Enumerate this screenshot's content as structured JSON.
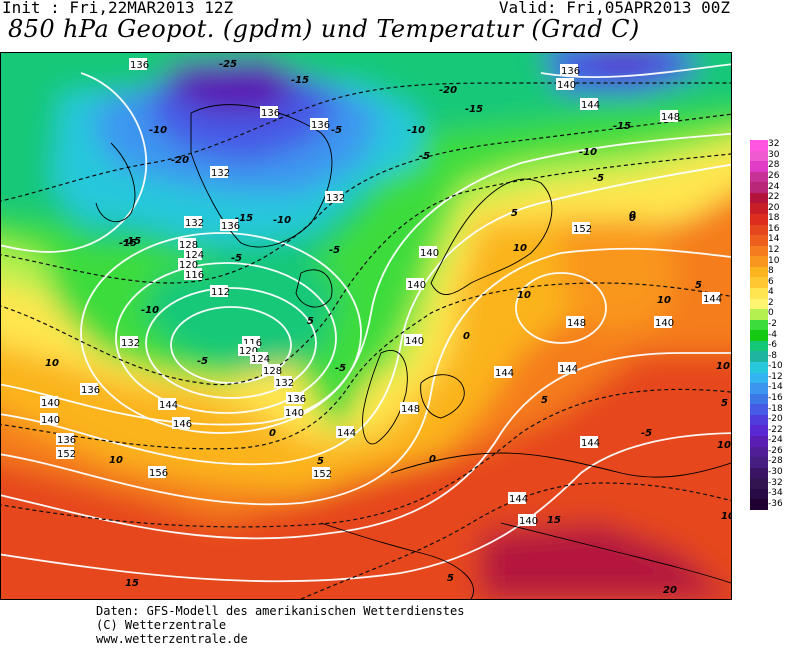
{
  "header": {
    "init": "Init : Fri,22MAR2013 12Z",
    "valid": "Valid: Fri,05APR2013 00Z",
    "title": "850 hPa Geopot. (gpdm) und Temperatur (Grad C)"
  },
  "legend": {
    "labels": [
      "32",
      "30",
      "28",
      "26",
      "24",
      "22",
      "20",
      "18",
      "16",
      "14",
      "12",
      "10",
      "8",
      "6",
      "4",
      "2",
      "0",
      "-2",
      "-4",
      "-6",
      "-8",
      "-10",
      "-12",
      "-14",
      "-16",
      "-18",
      "-20",
      "-22",
      "-24",
      "-26",
      "-28",
      "-30",
      "-32",
      "-34",
      "-36"
    ],
    "colors": [
      "#ff55e0",
      "#f05ad0",
      "#e03cc8",
      "#c83296",
      "#b92878",
      "#b4143c",
      "#c81e28",
      "#dc2d1e",
      "#e6461e",
      "#ee5f1e",
      "#f57d1e",
      "#f9961e",
      "#fbb41e",
      "#ffc832",
      "#ffe650",
      "#fff573",
      "#b4f050",
      "#3cdc3c",
      "#14c814",
      "#14c878",
      "#1eb4a0",
      "#28c8dc",
      "#32b4f0",
      "#3c96f0",
      "#3c78e6",
      "#465ae6",
      "#503cdc",
      "#5a28d2",
      "#5a1eb4",
      "#501e96",
      "#461e82",
      "#3c1464",
      "#321450",
      "#280a46",
      "#200032"
    ]
  },
  "map": {
    "geopotential_labels": [
      "136",
      "136",
      "132",
      "132",
      "136",
      "136",
      "136",
      "132",
      "128",
      "124",
      "120",
      "116",
      "112",
      "116",
      "120",
      "124",
      "128",
      "132",
      "136",
      "140",
      "132",
      "136",
      "140",
      "146",
      "152",
      "156",
      "152",
      "144",
      "140",
      "140",
      "140",
      "148",
      "144",
      "136",
      "140",
      "144",
      "148",
      "152",
      "148",
      "140",
      "144",
      "144",
      "144",
      "144",
      "140",
      "144",
      "140"
    ],
    "temperature_labels": [
      "-25",
      "-15",
      "-20",
      "-20",
      "-15",
      "-10",
      "-5",
      "-15",
      "-10",
      "-5",
      "-15",
      "-5",
      "-5",
      "-10",
      "-10",
      "-5",
      "-15",
      "-10",
      "-5",
      "0",
      "-5",
      "5",
      "10",
      "0",
      "5",
      "0",
      "10",
      "10",
      "10",
      "5",
      "5",
      "5",
      "5",
      "0",
      "-5",
      "10",
      "-15",
      "15",
      "20",
      "10",
      "15",
      "10",
      "10",
      "0",
      "5"
    ]
  },
  "footer": {
    "line1": "Daten: GFS-Modell des amerikanischen Wetterdienstes",
    "line2": "(C) Wetterzentrale",
    "line3": "www.wetterzentrale.de"
  }
}
